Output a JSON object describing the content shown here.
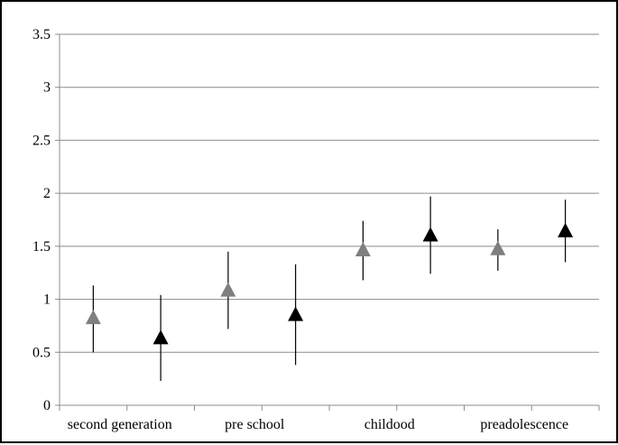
{
  "chart_data": {
    "type": "scatter",
    "title": "",
    "xlabel": "",
    "ylabel": "",
    "ylim": [
      0,
      3.5
    ],
    "yticks": [
      "0",
      "0.5",
      "1",
      "1.5",
      "2",
      "2.5",
      "3",
      "3.5"
    ],
    "categories": [
      "second generation",
      "pre school",
      "childood",
      "preadolescence"
    ],
    "grid": true,
    "legend": "none",
    "marker": "triangle",
    "series": [
      {
        "color": "#7f7f7f",
        "points": [
          {
            "category": "second generation",
            "value": 0.82,
            "low": 0.5,
            "high": 1.13
          },
          {
            "category": "pre school",
            "value": 1.08,
            "low": 0.72,
            "high": 1.45
          },
          {
            "category": "childood",
            "value": 1.46,
            "low": 1.18,
            "high": 1.74
          },
          {
            "category": "preadolescence",
            "value": 1.47,
            "low": 1.27,
            "high": 1.66
          }
        ]
      },
      {
        "color": "#000000",
        "points": [
          {
            "category": "second generation",
            "value": 0.63,
            "low": 0.23,
            "high": 1.04
          },
          {
            "category": "pre school",
            "value": 0.85,
            "low": 0.38,
            "high": 1.33
          },
          {
            "category": "childood",
            "value": 1.6,
            "low": 1.24,
            "high": 1.97
          },
          {
            "category": "preadolescence",
            "value": 1.64,
            "low": 1.35,
            "high": 1.94
          }
        ]
      }
    ]
  }
}
